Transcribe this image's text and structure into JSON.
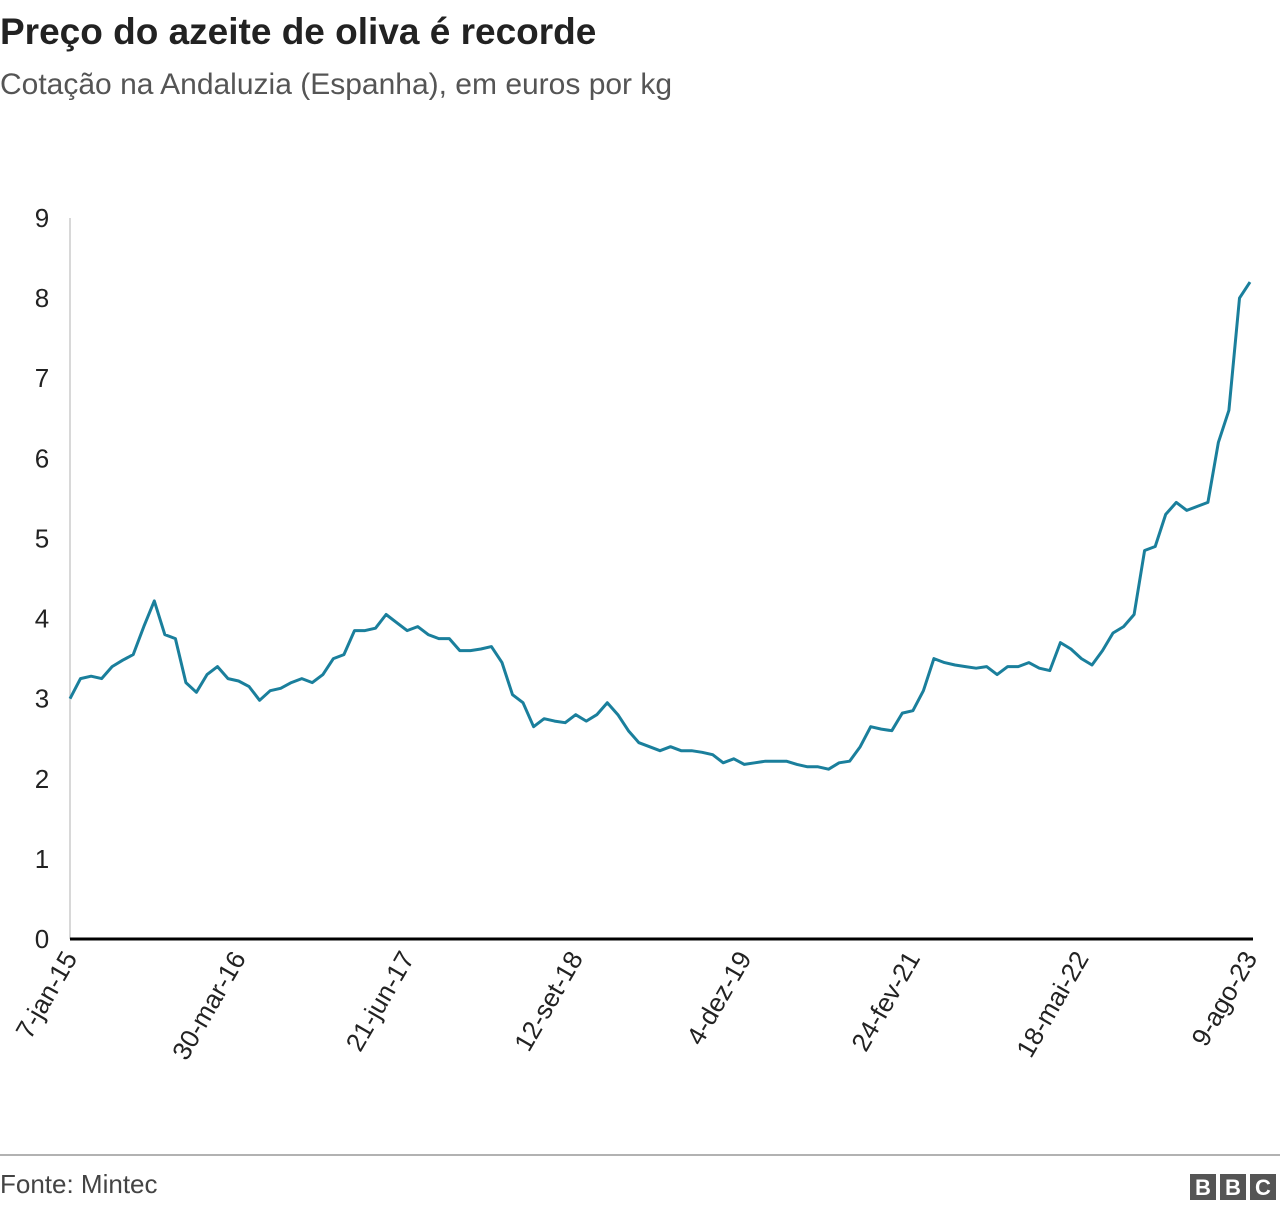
{
  "chart_data": {
    "type": "line",
    "title": "Preço do azeite de oliva é recorde",
    "subtitle": "Cotação na Andaluzia (Espanha), em euros por kg",
    "source": "Fonte: Mintec",
    "logo": [
      "B",
      "B",
      "C"
    ],
    "categories": [
      "7-jan-15",
      null,
      null,
      null,
      null,
      null,
      null,
      null,
      null,
      null,
      null,
      null,
      null,
      null,
      null,
      null,
      "30-mar-16",
      null,
      null,
      null,
      null,
      null,
      null,
      null,
      null,
      null,
      null,
      null,
      null,
      null,
      null,
      null,
      "21-jun-17",
      null,
      null,
      null,
      null,
      null,
      null,
      null,
      null,
      null,
      null,
      null,
      null,
      null,
      null,
      null,
      "12-set-18",
      null,
      null,
      null,
      null,
      null,
      null,
      null,
      null,
      null,
      null,
      null,
      null,
      null,
      null,
      null,
      "4-dez-19",
      null,
      null,
      null,
      null,
      null,
      null,
      null,
      null,
      null,
      null,
      null,
      null,
      null,
      null,
      null,
      "24-fev-21",
      null,
      null,
      null,
      null,
      null,
      null,
      null,
      null,
      null,
      null,
      null,
      null,
      null,
      null,
      null,
      "18-mai-22",
      null,
      null,
      null,
      null,
      null,
      null,
      null,
      null,
      null,
      null,
      null,
      null,
      null,
      null,
      null,
      "9-ago-23"
    ],
    "series": [
      {
        "color": "#1a7f9c",
        "values": [
          3.0,
          3.25,
          3.28,
          3.25,
          3.4,
          3.48,
          3.55,
          3.9,
          4.22,
          3.8,
          3.75,
          3.2,
          3.08,
          3.3,
          3.4,
          3.25,
          3.22,
          3.15,
          2.98,
          3.1,
          3.13,
          3.2,
          3.25,
          3.2,
          3.3,
          3.5,
          3.55,
          3.85,
          3.85,
          3.88,
          4.05,
          3.95,
          3.85,
          3.9,
          3.8,
          3.75,
          3.75,
          3.6,
          3.6,
          3.62,
          3.65,
          3.45,
          3.05,
          2.95,
          2.65,
          2.75,
          2.72,
          2.7,
          2.8,
          2.72,
          2.8,
          2.95,
          2.8,
          2.6,
          2.45,
          2.4,
          2.35,
          2.4,
          2.35,
          2.35,
          2.33,
          2.3,
          2.2,
          2.25,
          2.18,
          2.2,
          2.22,
          2.22,
          2.22,
          2.18,
          2.15,
          2.15,
          2.12,
          2.2,
          2.22,
          2.4,
          2.65,
          2.62,
          2.6,
          2.82,
          2.85,
          3.1,
          3.5,
          3.45,
          3.42,
          3.4,
          3.38,
          3.4,
          3.3,
          3.4,
          3.4,
          3.45,
          3.38,
          3.35,
          3.7,
          3.62,
          3.5,
          3.42,
          3.6,
          3.82,
          3.9,
          4.05,
          4.85,
          4.9,
          5.3,
          5.45,
          5.35,
          5.4,
          5.45,
          6.2,
          6.6,
          8.0,
          8.2
        ]
      }
    ],
    "ylim": [
      0,
      9
    ],
    "yticks": [
      0,
      1,
      2,
      3,
      4,
      5,
      6,
      7,
      8,
      9
    ],
    "grid": false
  }
}
